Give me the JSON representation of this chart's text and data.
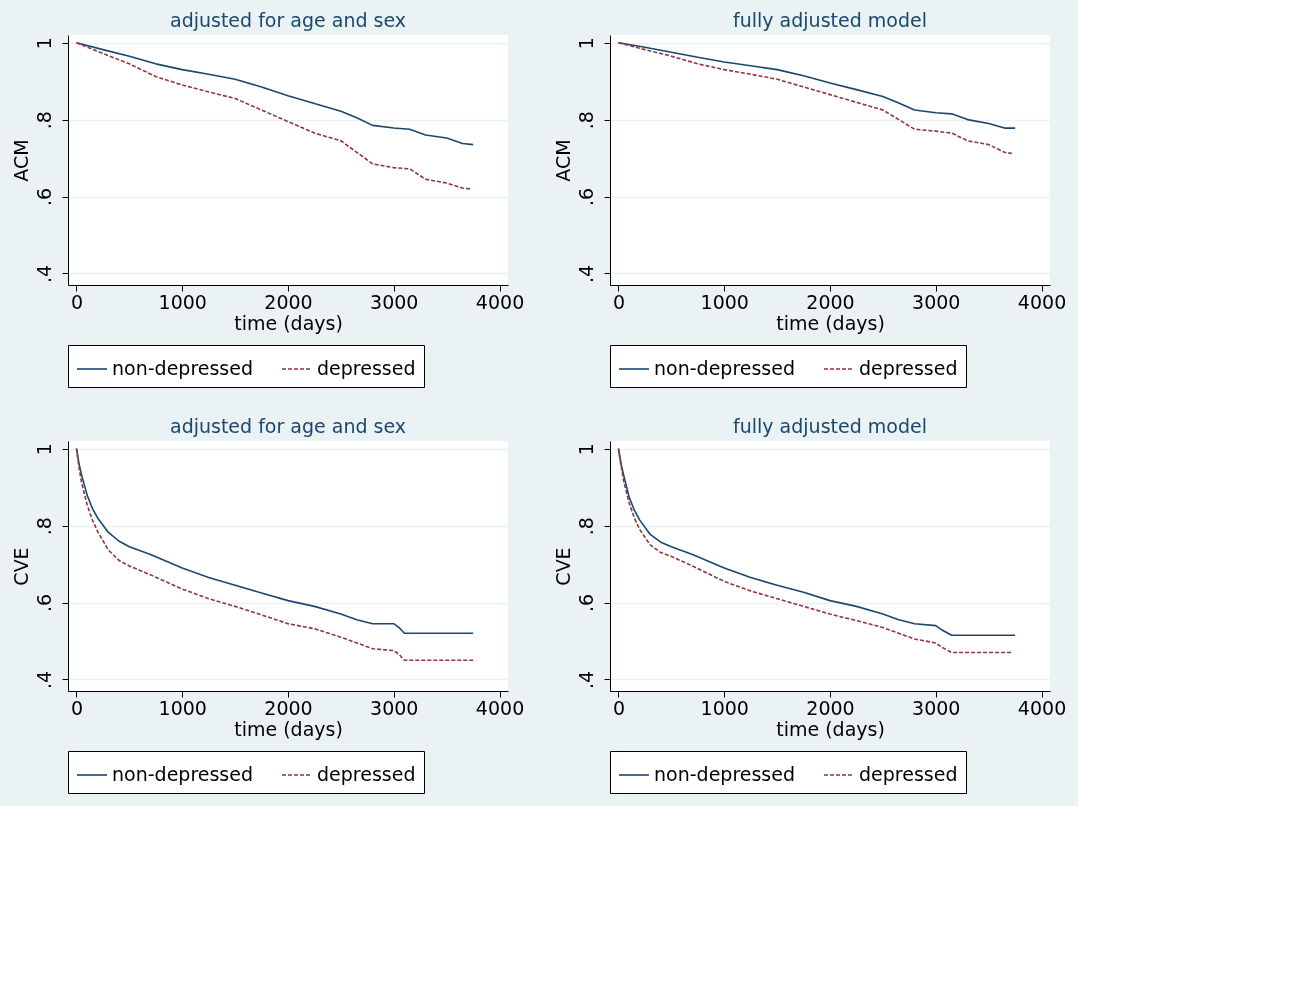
{
  "chart_data": [
    {
      "type": "line",
      "title": "adjusted for age and sex",
      "xlabel": "time (days)",
      "ylabel": "ACM",
      "xlim": [
        -80,
        4080
      ],
      "xticks": [
        0,
        1000,
        2000,
        3000,
        4000
      ],
      "ylim": [
        0.37,
        1.02
      ],
      "yticks": [
        {
          "value": 0.4,
          "label": ".4"
        },
        {
          "value": 0.6,
          "label": ".6"
        },
        {
          "value": 0.8,
          "label": ".8"
        },
        {
          "value": 1,
          "label": "1"
        }
      ],
      "grid": "y",
      "legend": "bottom",
      "series": [
        {
          "name": "non-depressed",
          "color": "#1a476f",
          "line_style": "solid",
          "x": [
            0,
            250,
            500,
            750,
            1000,
            1250,
            1500,
            1750,
            2000,
            2250,
            2500,
            2650,
            2800,
            3000,
            3150,
            3300,
            3500,
            3650,
            3750
          ],
          "values": [
            1,
            0.982,
            0.965,
            0.945,
            0.93,
            0.918,
            0.905,
            0.885,
            0.862,
            0.842,
            0.822,
            0.805,
            0.785,
            0.778,
            0.775,
            0.76,
            0.752,
            0.738,
            0.735
          ]
        },
        {
          "name": "depressed",
          "color": "#90353b",
          "line_style": "dashed",
          "x": [
            0,
            250,
            500,
            750,
            1000,
            1250,
            1500,
            1750,
            2000,
            2250,
            2500,
            2650,
            2800,
            3000,
            3150,
            3300,
            3500,
            3650,
            3720
          ],
          "values": [
            1,
            0.972,
            0.945,
            0.912,
            0.89,
            0.872,
            0.855,
            0.825,
            0.795,
            0.765,
            0.745,
            0.715,
            0.685,
            0.675,
            0.672,
            0.645,
            0.635,
            0.622,
            0.62
          ]
        }
      ]
    },
    {
      "type": "line",
      "title": "fully adjusted model",
      "xlabel": "time (days)",
      "ylabel": "ACM",
      "xlim": [
        -80,
        4080
      ],
      "xticks": [
        0,
        1000,
        2000,
        3000,
        4000
      ],
      "ylim": [
        0.37,
        1.02
      ],
      "yticks": [
        {
          "value": 0.4,
          "label": ".4"
        },
        {
          "value": 0.6,
          "label": ".6"
        },
        {
          "value": 0.8,
          "label": ".8"
        },
        {
          "value": 1,
          "label": "1"
        }
      ],
      "grid": "y",
      "legend": "bottom",
      "series": [
        {
          "name": "non-depressed",
          "color": "#1a476f",
          "line_style": "solid",
          "x": [
            0,
            250,
            500,
            750,
            1000,
            1250,
            1500,
            1750,
            2000,
            2250,
            2500,
            2650,
            2800,
            3000,
            3150,
            3300,
            3500,
            3650,
            3750
          ],
          "values": [
            1,
            0.988,
            0.975,
            0.962,
            0.95,
            0.94,
            0.93,
            0.914,
            0.895,
            0.878,
            0.86,
            0.843,
            0.825,
            0.818,
            0.815,
            0.8,
            0.79,
            0.778,
            0.778
          ]
        },
        {
          "name": "depressed",
          "color": "#90353b",
          "line_style": "dashed",
          "x": [
            0,
            250,
            500,
            750,
            1000,
            1250,
            1500,
            1750,
            2000,
            2250,
            2500,
            2650,
            2800,
            3000,
            3150,
            3300,
            3500,
            3650,
            3720
          ],
          "values": [
            1,
            0.982,
            0.965,
            0.945,
            0.93,
            0.918,
            0.905,
            0.885,
            0.865,
            0.845,
            0.825,
            0.8,
            0.775,
            0.77,
            0.765,
            0.745,
            0.735,
            0.715,
            0.712
          ]
        }
      ]
    },
    {
      "type": "line",
      "title": "adjusted for age and sex",
      "xlabel": "time (days)",
      "ylabel": "CVE",
      "xlim": [
        -80,
        4080
      ],
      "xticks": [
        0,
        1000,
        2000,
        3000,
        4000
      ],
      "ylim": [
        0.37,
        1.02
      ],
      "yticks": [
        {
          "value": 0.4,
          "label": ".4"
        },
        {
          "value": 0.6,
          "label": ".6"
        },
        {
          "value": 0.8,
          "label": ".8"
        },
        {
          "value": 1,
          "label": "1"
        }
      ],
      "grid": "y",
      "legend": "bottom",
      "series": [
        {
          "name": "non-depressed",
          "color": "#1a476f",
          "line_style": "solid",
          "x": [
            0,
            25,
            50,
            100,
            150,
            200,
            300,
            400,
            500,
            700,
            1000,
            1250,
            1500,
            1750,
            2000,
            2250,
            2500,
            2650,
            2800,
            3000,
            3050,
            3100,
            3400,
            3750
          ],
          "values": [
            1,
            0.96,
            0.93,
            0.88,
            0.845,
            0.82,
            0.783,
            0.76,
            0.745,
            0.725,
            0.69,
            0.665,
            0.645,
            0.625,
            0.605,
            0.59,
            0.57,
            0.555,
            0.545,
            0.545,
            0.535,
            0.52,
            0.52,
            0.52
          ]
        },
        {
          "name": "depressed",
          "color": "#90353b",
          "line_style": "dashed",
          "x": [
            0,
            25,
            50,
            100,
            150,
            200,
            300,
            400,
            500,
            700,
            1000,
            1250,
            1500,
            1750,
            2000,
            2250,
            2500,
            2650,
            2800,
            3000,
            3050,
            3100,
            3400,
            3750
          ],
          "values": [
            1,
            0.95,
            0.91,
            0.855,
            0.815,
            0.785,
            0.737,
            0.71,
            0.695,
            0.672,
            0.635,
            0.61,
            0.59,
            0.568,
            0.545,
            0.532,
            0.51,
            0.495,
            0.48,
            0.475,
            0.465,
            0.45,
            0.45,
            0.45
          ]
        }
      ]
    },
    {
      "type": "line",
      "title": "fully adjusted model",
      "xlabel": "time (days)",
      "ylabel": "CVE",
      "xlim": [
        -80,
        4080
      ],
      "xticks": [
        0,
        1000,
        2000,
        3000,
        4000
      ],
      "ylim": [
        0.37,
        1.02
      ],
      "yticks": [
        {
          "value": 0.4,
          "label": ".4"
        },
        {
          "value": 0.6,
          "label": ".6"
        },
        {
          "value": 0.8,
          "label": ".8"
        },
        {
          "value": 1,
          "label": "1"
        }
      ],
      "grid": "y",
      "legend": "bottom",
      "series": [
        {
          "name": "non-depressed",
          "color": "#1a476f",
          "line_style": "solid",
          "x": [
            0,
            25,
            50,
            100,
            150,
            200,
            300,
            400,
            500,
            700,
            1000,
            1250,
            1500,
            1750,
            2000,
            2250,
            2500,
            2650,
            2800,
            3000,
            3050,
            3150,
            3400,
            3750
          ],
          "values": [
            1,
            0.96,
            0.93,
            0.875,
            0.84,
            0.815,
            0.777,
            0.757,
            0.745,
            0.725,
            0.69,
            0.665,
            0.645,
            0.627,
            0.605,
            0.59,
            0.57,
            0.555,
            0.545,
            0.54,
            0.53,
            0.515,
            0.515,
            0.515
          ]
        },
        {
          "name": "depressed",
          "color": "#90353b",
          "line_style": "dashed",
          "x": [
            0,
            25,
            50,
            100,
            150,
            200,
            300,
            400,
            500,
            700,
            1000,
            1250,
            1500,
            1750,
            2000,
            2250,
            2500,
            2650,
            2800,
            3000,
            3050,
            3150,
            3400,
            3720
          ],
          "values": [
            1,
            0.955,
            0.915,
            0.86,
            0.82,
            0.79,
            0.75,
            0.73,
            0.72,
            0.695,
            0.655,
            0.63,
            0.61,
            0.59,
            0.57,
            0.553,
            0.535,
            0.52,
            0.505,
            0.495,
            0.485,
            0.47,
            0.47,
            0.47
          ]
        }
      ]
    }
  ]
}
